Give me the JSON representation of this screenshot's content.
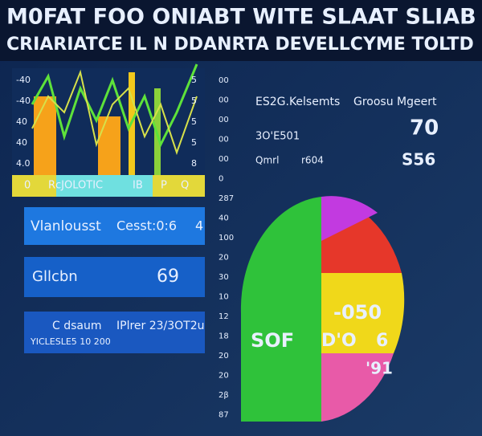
{
  "header": {
    "title": "M0FAT FOO ONIABT WITE SLAAT SLIAB",
    "subtitle": "CRIARIATCE IL N DDANRTA DEVELLCYME TOLTD"
  },
  "left_chart": {
    "left_axis": [
      "-40",
      "-40",
      "40",
      "40",
      "4.0"
    ],
    "right_axis": [
      "5",
      "5",
      "5",
      "5",
      "8"
    ],
    "bottom_labels": [
      "0",
      "RcJOLOTIC",
      "IB",
      "P",
      "Q"
    ]
  },
  "panels": [
    {
      "label": "Vlanlousst",
      "value": "Cesst:0:6",
      "extra": "4"
    },
    {
      "label": "Gllcbn",
      "value": "69"
    },
    {
      "label": "C dsaum",
      "value": "IPlrer 23/3OT2u",
      "extra": "YICLESLE5 10 200"
    }
  ],
  "middle_axis": [
    "00",
    "00",
    "00",
    "00",
    "00",
    "0",
    "287",
    "40",
    "100",
    "20",
    "30",
    "10",
    "12",
    "18",
    "20",
    "20",
    "2β",
    "87"
  ],
  "stats": {
    "row1": [
      "ES2G.Kelsemts",
      "Groosu Mgeert"
    ],
    "big": "70",
    "row2": "3O'E501",
    "row3": [
      "Qmrl",
      "r604"
    ],
    "side": "S56"
  },
  "pie_labels": [
    "-050",
    "SOF",
    "D'O",
    "6",
    "'91"
  ]
}
